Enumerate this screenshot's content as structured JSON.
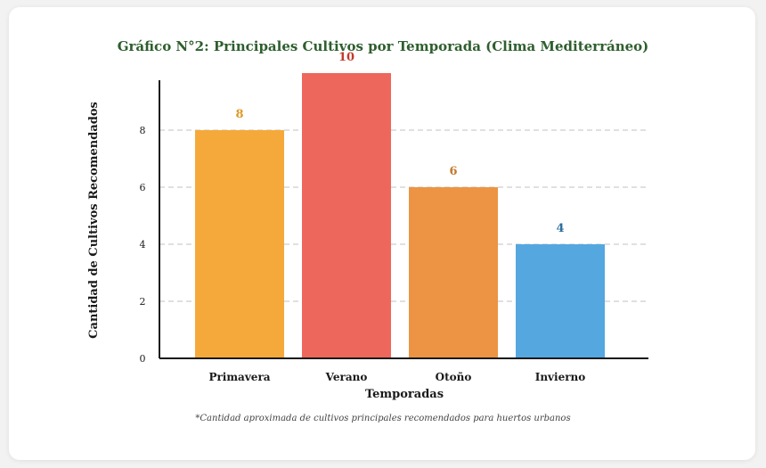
{
  "chart_data": {
    "type": "bar",
    "title": "Gráfico N°2: Principales Cultivos por Temporada (Clima Mediterráneo)",
    "xlabel": "Temporadas",
    "ylabel": "Cantidad de Cultivos Recomendados",
    "categories": [
      "Primavera",
      "Verano",
      "Otoño",
      "Invierno"
    ],
    "values": [
      8,
      10,
      6,
      4
    ],
    "value_labels": [
      "8",
      "10",
      "6",
      "4"
    ],
    "bar_colors": [
      "#f5a93a",
      "#ee675c",
      "#ec9444",
      "#55a7e0"
    ],
    "label_colors": [
      "#e09a2c",
      "#c0392b",
      "#c47a30",
      "#2e6f9e"
    ],
    "ylim": [
      0,
      10
    ],
    "yticks": [
      0,
      2,
      4,
      6,
      8
    ],
    "ytick_labels": [
      "0",
      "2",
      "4",
      "6",
      "8"
    ],
    "grid": true,
    "footnote": "*Cantidad aproximada de cultivos principales recomendados para huertos urbanos"
  },
  "colors": {
    "title": "#2e5e2e",
    "axis": "#1a1a1a",
    "grid": "#d6d6d6"
  }
}
